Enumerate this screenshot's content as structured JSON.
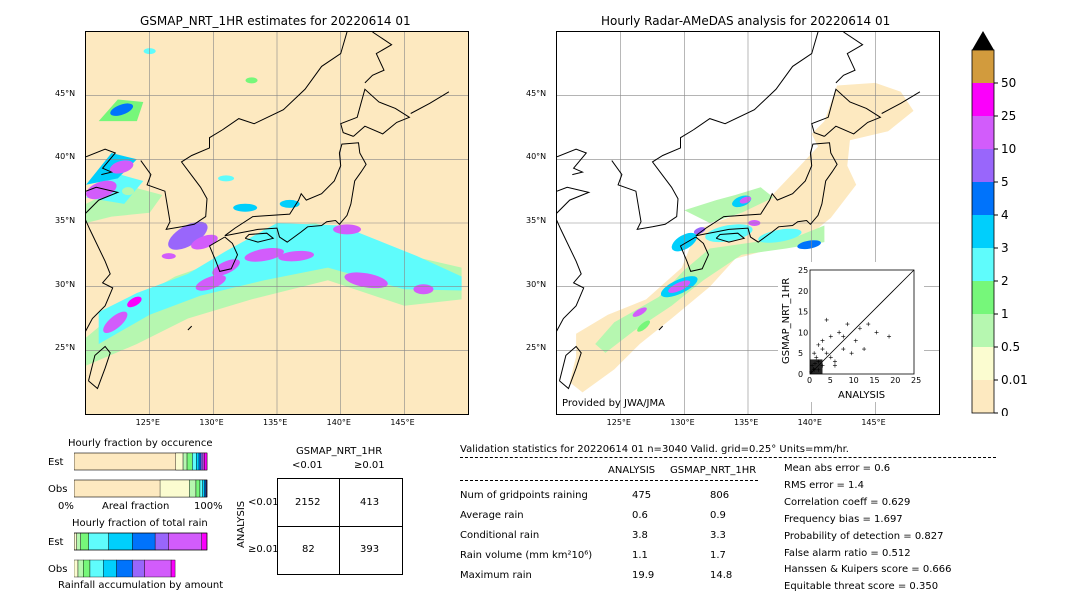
{
  "left_map": {
    "title": "GSMAP_NRT_1HR estimates for 20220614 01",
    "lat_ticks": [
      "45°N",
      "40°N",
      "35°N",
      "30°N",
      "25°N"
    ],
    "lon_ticks": [
      "125°E",
      "130°E",
      "135°E",
      "140°E",
      "145°E"
    ]
  },
  "right_map": {
    "title": "Hourly Radar-AMeDAS analysis for 20220614 01",
    "lat_ticks": [
      "45°N",
      "40°N",
      "35°N",
      "30°N",
      "25°N"
    ],
    "lon_ticks": [
      "125°E",
      "130°E",
      "135°E",
      "140°E",
      "145°E"
    ],
    "credit": "Provided by JWA/JMA"
  },
  "colorbar": {
    "levels": [
      "0",
      "0.01",
      "0.5",
      "1",
      "2",
      "3",
      "4",
      "5",
      "10",
      "25",
      "50"
    ],
    "colors": [
      "#fde9c0",
      "#fbfcd0",
      "#b6f7b0",
      "#76f77a",
      "#5ffcfc",
      "#00cffc",
      "#0073fb",
      "#9966fb",
      "#d25cfb",
      "#fb00fb",
      "#d29b3d"
    ]
  },
  "scatter_inset": {
    "xlabel": "ANALYSIS",
    "ylabel": "GSMAP_NRT_1HR",
    "xticks": [
      "0",
      "5",
      "10",
      "15",
      "20",
      "25"
    ],
    "yticks": [
      "0",
      "5",
      "10",
      "15",
      "20",
      "25"
    ]
  },
  "occurrence": {
    "title": "Hourly fraction by occurence",
    "row_est": "Est",
    "row_obs": "Obs",
    "axis_left": "0%",
    "axis_mid": "Areal fraction",
    "axis_right": "100%"
  },
  "total_rain": {
    "title": "Hourly fraction of total rain",
    "row_est": "Est",
    "row_obs": "Obs",
    "axis_caption": "Rainfall accumulation by amount"
  },
  "contingency": {
    "header": "GSMAP_NRT_1HR",
    "col1": "<0.01",
    "col2": "≥0.01",
    "row_axis": "ANALYSIS",
    "row1": "<0.01",
    "row2": "≥0.01",
    "cells": [
      "2152",
      "413",
      "82",
      "393"
    ]
  },
  "validation": {
    "header": "Validation statistics for 20220614 01  n=3040 Valid. grid=0.25° Units=mm/hr.",
    "col_analysis": "ANALYSIS",
    "col_gsmap": "GSMAP_NRT_1HR",
    "rows": [
      {
        "label": "Num of gridpoints raining",
        "analysis": "475",
        "gsmap": "806"
      },
      {
        "label": "Average rain",
        "analysis": "0.6",
        "gsmap": "0.9"
      },
      {
        "label": "Conditional rain",
        "analysis": "3.8",
        "gsmap": "3.3"
      },
      {
        "label": "Rain volume (mm km²10⁶)",
        "analysis": "1.1",
        "gsmap": "1.7"
      },
      {
        "label": "Maximum rain",
        "analysis": "19.9",
        "gsmap": "14.8"
      }
    ],
    "scores": [
      "Mean abs error =    0.6",
      "RMS error =    1.4",
      "Correlation coeff =  0.629",
      "Frequency bias =  1.697",
      "Probability of detection =  0.827",
      "False alarm ratio =  0.512",
      "Hanssen & Kuipers score =  0.666",
      "Equitable threat score =  0.350"
    ]
  },
  "chart_data": [
    {
      "type": "heatmap",
      "title": "GSMAP_NRT_1HR estimates for 20220614 01",
      "xlabel": "",
      "ylabel": "",
      "xlim": [
        120,
        150
      ],
      "ylim": [
        20,
        50
      ],
      "x_ticks": [
        125,
        130,
        135,
        140,
        145
      ],
      "y_ticks": [
        25,
        30,
        35,
        40,
        45
      ],
      "legend_levels": [
        0,
        0.01,
        0.5,
        1,
        2,
        3,
        4,
        5,
        10,
        25,
        50
      ]
    },
    {
      "type": "heatmap",
      "title": "Hourly Radar-AMeDAS analysis for 20220614 01",
      "xlabel": "",
      "ylabel": "",
      "xlim": [
        120,
        150
      ],
      "ylim": [
        20,
        50
      ],
      "x_ticks": [
        125,
        130,
        135,
        140,
        145
      ],
      "y_ticks": [
        25,
        30,
        35,
        40,
        45
      ]
    },
    {
      "type": "table",
      "title": "Validation statistics for 20220614 01",
      "columns": [
        "ANALYSIS",
        "GSMAP_NRT_1HR"
      ],
      "rows": [
        [
          "Num of gridpoints raining",
          475,
          806
        ],
        [
          "Average rain",
          0.6,
          0.9
        ],
        [
          "Conditional rain",
          3.8,
          3.3
        ],
        [
          "Rain volume (mm km²10⁶)",
          1.1,
          1.7
        ],
        [
          "Maximum rain",
          19.9,
          14.8
        ]
      ],
      "contingency": [
        [
          2152,
          413
        ],
        [
          82,
          393
        ]
      ]
    },
    {
      "type": "scatter",
      "xlabel": "ANALYSIS",
      "ylabel": "GSMAP_NRT_1HR",
      "xlim": [
        0,
        25
      ],
      "ylim": [
        0,
        25
      ],
      "points": [
        [
          1,
          1
        ],
        [
          2,
          3
        ],
        [
          3,
          2
        ],
        [
          4,
          5
        ],
        [
          5,
          4
        ],
        [
          6,
          3
        ],
        [
          2,
          7
        ],
        [
          8,
          6
        ],
        [
          10,
          5
        ],
        [
          12,
          11
        ],
        [
          14,
          12
        ],
        [
          16,
          10
        ],
        [
          19,
          9
        ],
        [
          0.5,
          2
        ],
        [
          1.5,
          4
        ],
        [
          3,
          8
        ],
        [
          5,
          9
        ],
        [
          7,
          10
        ],
        [
          9,
          12
        ],
        [
          4,
          13
        ],
        [
          6,
          2
        ],
        [
          2,
          1
        ],
        [
          1,
          5
        ],
        [
          3,
          6
        ],
        [
          11,
          8
        ],
        [
          13,
          6
        ],
        [
          8,
          9
        ],
        [
          0.3,
          0.5
        ],
        [
          0.8,
          1.2
        ],
        [
          1.2,
          2.5
        ]
      ]
    }
  ]
}
